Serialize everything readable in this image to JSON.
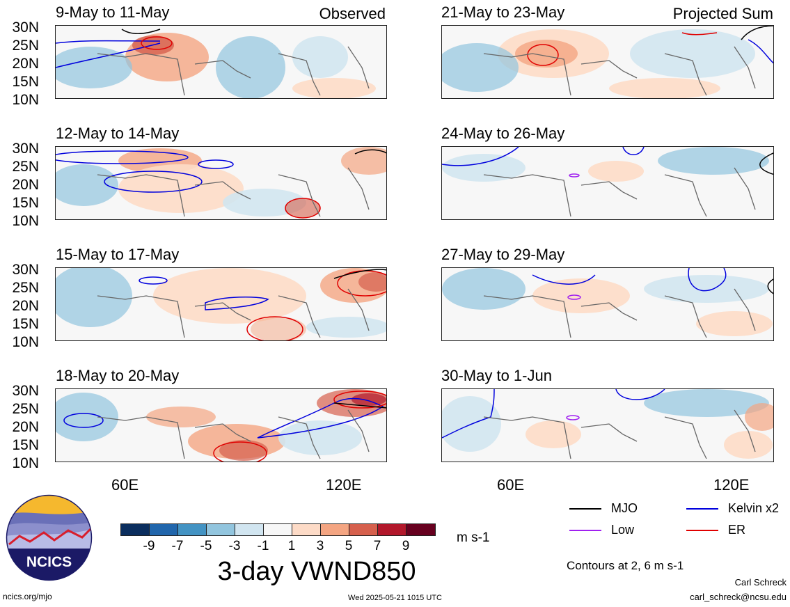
{
  "panels": [
    {
      "title": "9-May to 11-May",
      "tag": "Observed"
    },
    {
      "title": "12-May to 14-May",
      "tag": ""
    },
    {
      "title": "15-May to 17-May",
      "tag": ""
    },
    {
      "title": "18-May to 20-May",
      "tag": ""
    },
    {
      "title": "21-May to 23-May",
      "tag": "Projected Sum"
    },
    {
      "title": "24-May to 26-May",
      "tag": ""
    },
    {
      "title": "27-May to 29-May",
      "tag": ""
    },
    {
      "title": "30-May to 1-Jun",
      "tag": ""
    }
  ],
  "lat_labels": [
    "30N",
    "25N",
    "20N",
    "15N",
    "10N"
  ],
  "lon_labels": [
    "60E",
    "120E"
  ],
  "colorbar": {
    "labels": [
      "-9",
      "-7",
      "-5",
      "-3",
      "-1",
      "1",
      "3",
      "5",
      "7",
      "9"
    ],
    "colors": [
      "#0b2e5e",
      "#2166ac",
      "#4393c3",
      "#92c5de",
      "#d1e5f0",
      "#f7f7f7",
      "#fddbc7",
      "#f4a582",
      "#d6604d",
      "#b2182b",
      "#67001f"
    ],
    "units": "m s-1"
  },
  "main_title": "3-day VWND850",
  "legend": {
    "mjo": {
      "label": "MJO",
      "color": "#000000"
    },
    "kelvin": {
      "label": "Kelvin x2",
      "color": "#0000dd"
    },
    "low": {
      "label": "Low",
      "color": "#a020f0"
    },
    "er": {
      "label": "ER",
      "color": "#e00000"
    }
  },
  "contours_note": "Contours at 2, 6 m s-1",
  "logo_text": "NCICS",
  "footer": {
    "left": "ncics.org/mjo",
    "center": "Wed 2025-05-21 1015 UTC",
    "author": "Carl Schreck",
    "email": "carl_schreck@ncsu.edu"
  }
}
